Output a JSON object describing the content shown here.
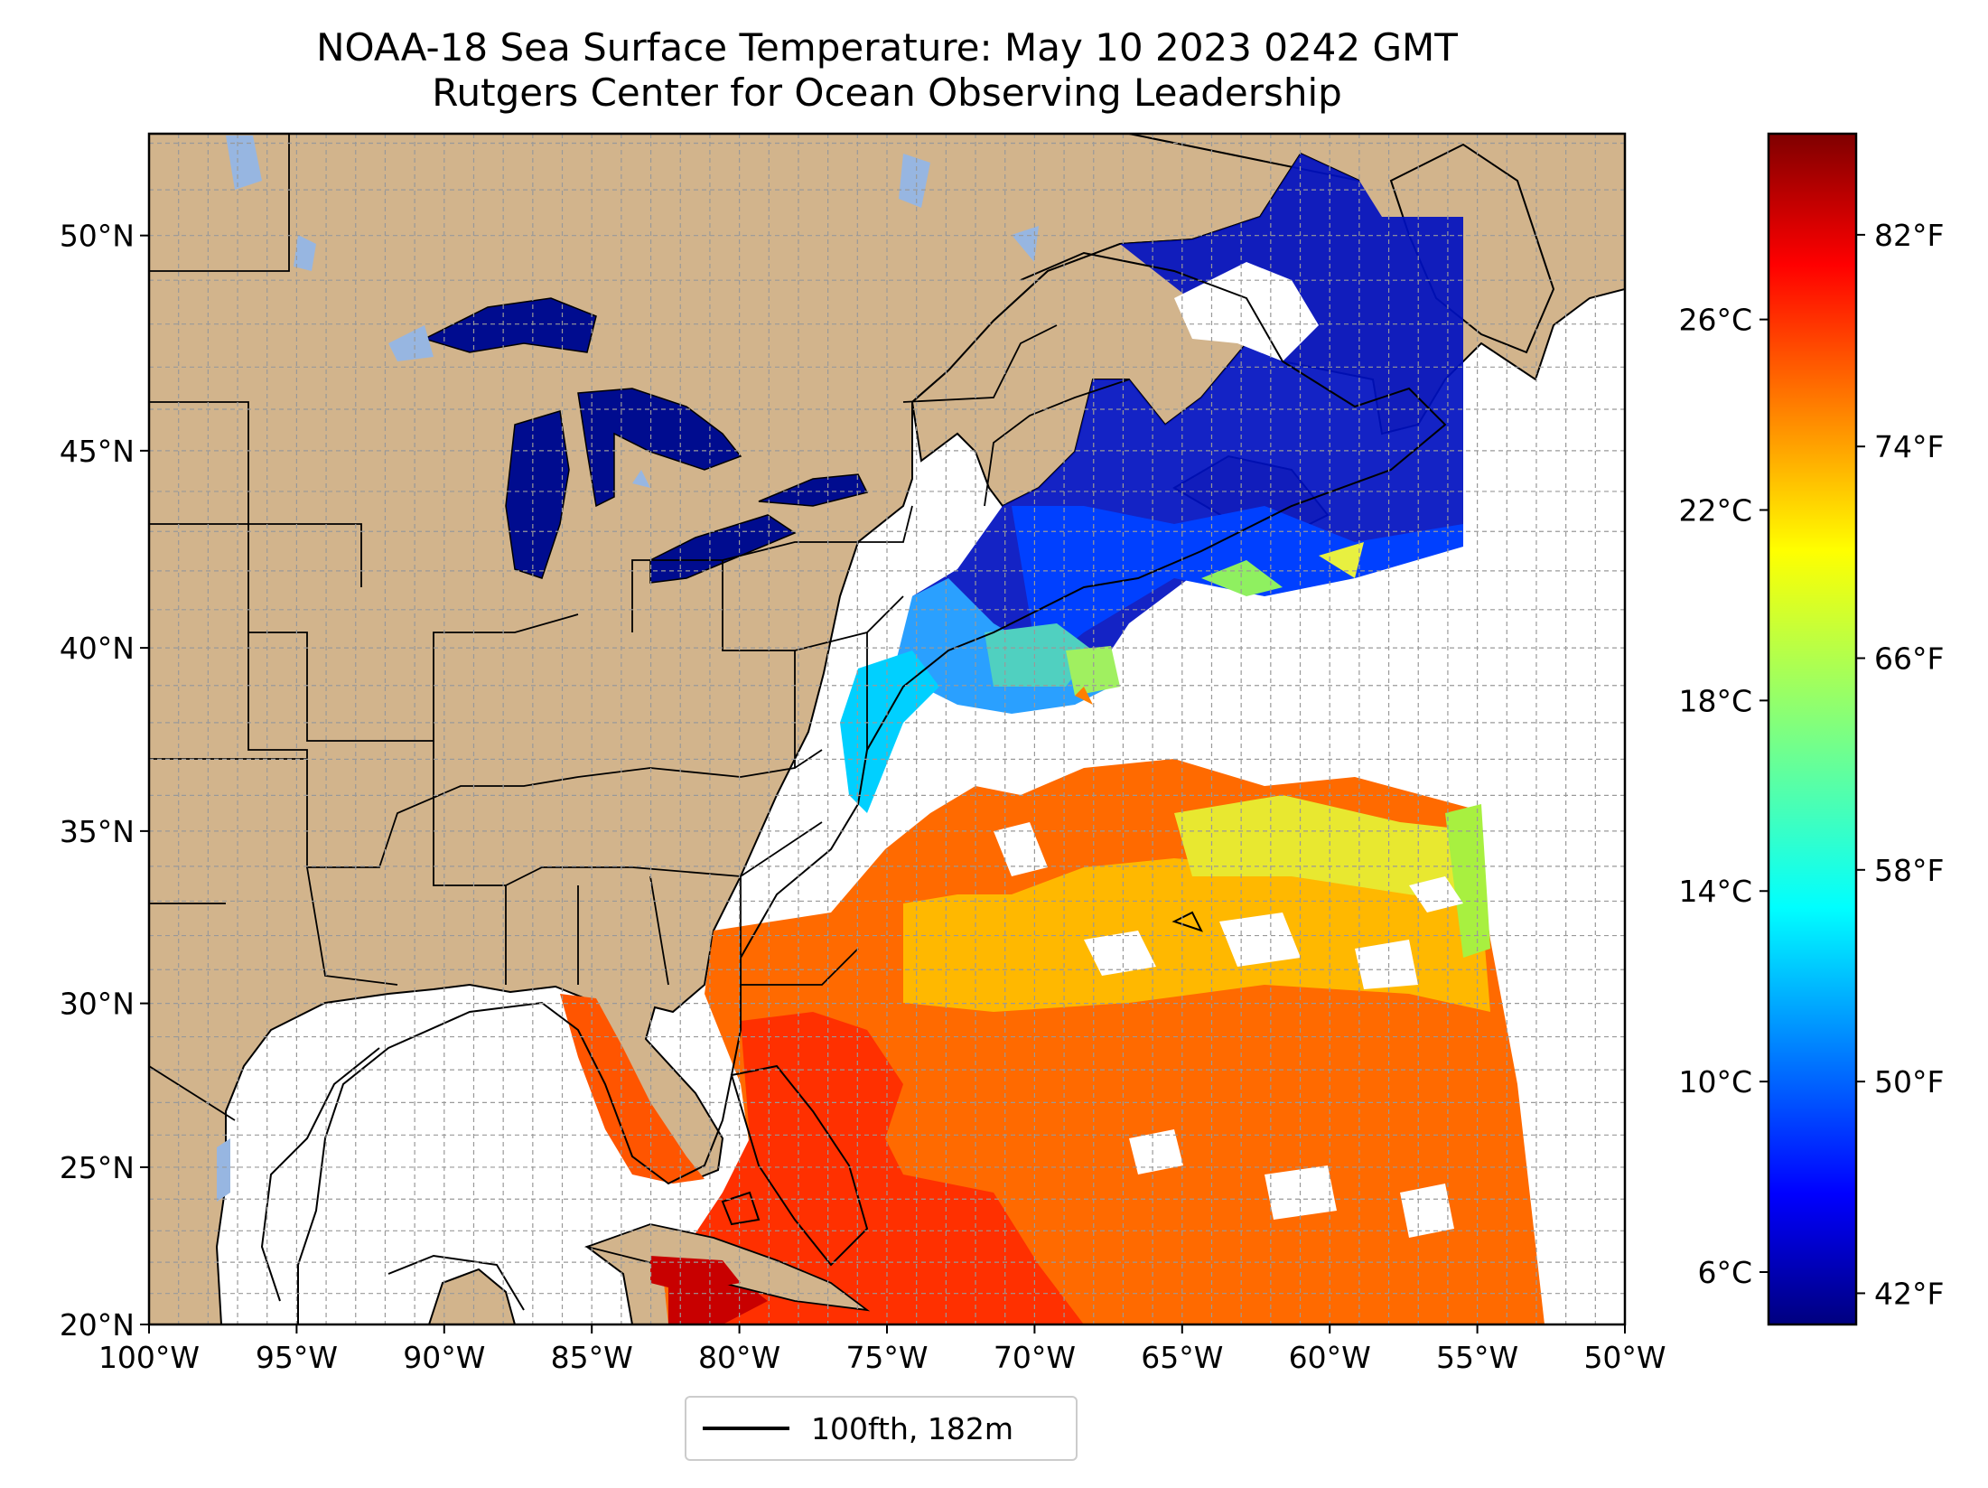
{
  "title": {
    "line1": "NOAA-18 Sea Surface Temperature: May 10 2023 0242 GMT",
    "line2": "Rutgers Center for Ocean Observing Leadership"
  },
  "map": {
    "lat_labels": [
      {
        "lat": 50,
        "label": "50°N"
      },
      {
        "lat": 45,
        "label": "45°N"
      },
      {
        "lat": 40,
        "label": "40°N"
      },
      {
        "lat": 35,
        "label": "35°N"
      },
      {
        "lat": 30,
        "label": "30°N"
      },
      {
        "lat": 25,
        "label": "25°N"
      },
      {
        "lat": 20,
        "label": "20°N"
      }
    ],
    "lon_labels": [
      {
        "lon": -100,
        "label": "100°W"
      },
      {
        "lon": -95,
        "label": "95°W"
      },
      {
        "lon": -90,
        "label": "90°W"
      },
      {
        "lon": -85,
        "label": "85°W"
      },
      {
        "lon": -80,
        "label": "80°W"
      },
      {
        "lon": -75,
        "label": "75°W"
      },
      {
        "lon": -70,
        "label": "70°W"
      },
      {
        "lon": -65,
        "label": "65°W"
      },
      {
        "lon": -60,
        "label": "60°W"
      },
      {
        "lon": -55,
        "label": "55°W"
      },
      {
        "lon": -50,
        "label": "50°W"
      }
    ],
    "extent": {
      "lon_min": -100,
      "lon_max": -50,
      "lat_min": 20,
      "lat_max": 52.2
    },
    "land_color": "#d2b48c",
    "lake_color": "#97b6e1",
    "ocean_color": "#ffffff",
    "grid": "dashed gray, 1° spacing"
  },
  "colorbar": {
    "colormap": "jet",
    "celsius_ticks": [
      "26°C",
      "22°C",
      "18°C",
      "14°C",
      "10°C",
      "6°C"
    ],
    "fahrenheit_ticks": [
      "82°F",
      "74°F",
      "66°F",
      "58°F",
      "50°F",
      "42°F"
    ],
    "stops": [
      "#00007f",
      "#0000ff",
      "#007fff",
      "#00ffff",
      "#7fff7f",
      "#ffff00",
      "#ff7f00",
      "#ff0000",
      "#7f0000"
    ]
  },
  "legend": {
    "label": "100fth, 182m"
  }
}
